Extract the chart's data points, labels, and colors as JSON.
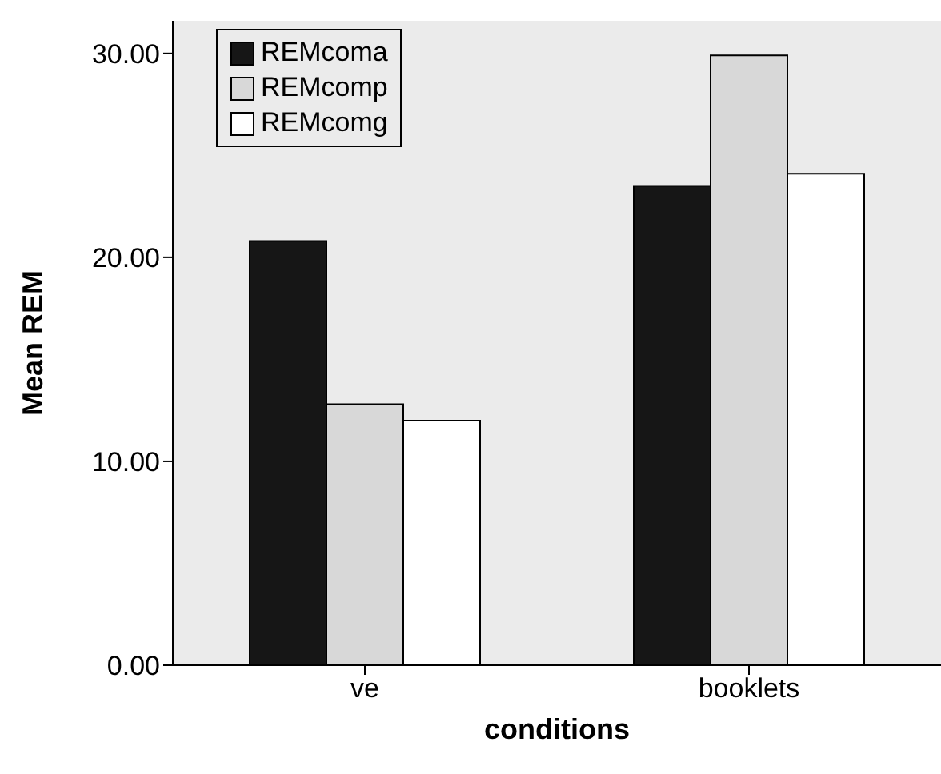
{
  "chart_data": {
    "type": "bar",
    "xlabel": "conditions",
    "ylabel": "Mean REM",
    "categories": [
      "ve",
      "booklets"
    ],
    "series": [
      {
        "name": "REMcoma",
        "color": "#161616",
        "values": [
          20.8,
          23.5
        ]
      },
      {
        "name": "REMcomp",
        "color": "#d8d8d8",
        "values": [
          12.8,
          29.9
        ]
      },
      {
        "name": "REMcomg",
        "color": "#ffffff",
        "values": [
          12.0,
          24.1
        ]
      }
    ],
    "ylim": [
      0,
      31.6
    ],
    "yticks": [
      {
        "value": 0,
        "label": "0.00"
      },
      {
        "value": 10,
        "label": "10.00"
      },
      {
        "value": 20,
        "label": "20.00"
      },
      {
        "value": 30,
        "label": "30.00"
      }
    ],
    "grid": false,
    "legend": "top left"
  }
}
